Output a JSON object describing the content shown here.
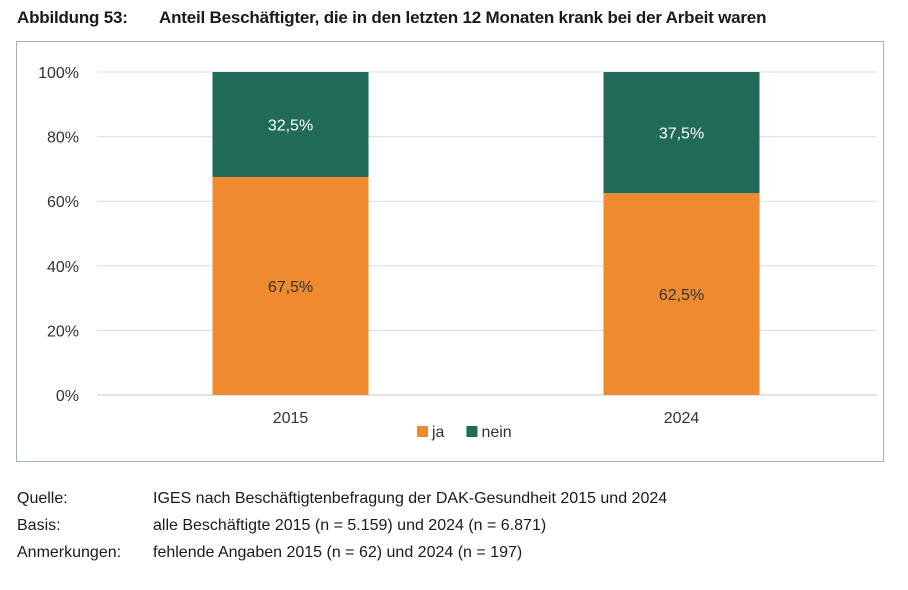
{
  "figure": {
    "label": "Abbildung 53:",
    "title": "Anteil Beschäftigter, die in den letzten 12 Monaten krank bei der Arbeit waren"
  },
  "chart_data": {
    "type": "bar",
    "stacked": true,
    "categories": [
      "2015",
      "2024"
    ],
    "series": [
      {
        "name": "ja",
        "values": [
          67.5,
          62.5
        ],
        "labels": [
          "67,5%",
          "62,5%"
        ],
        "color": "#ef8a2e"
      },
      {
        "name": "nein",
        "values": [
          32.5,
          37.5
        ],
        "labels": [
          "32,5%",
          "37,5%"
        ],
        "color": "#1f6b57"
      }
    ],
    "ylim": [
      0,
      100
    ],
    "yticks": [
      0,
      20,
      40,
      60,
      80,
      100
    ],
    "ytick_labels": [
      "0%",
      "20%",
      "40%",
      "60%",
      "80%",
      "100%"
    ],
    "grid": true,
    "legend_position": "bottom"
  },
  "notes": [
    {
      "key": "Quelle:",
      "value": "IGES nach Beschäftigtenbefragung der DAK-Gesundheit 2015 und 2024"
    },
    {
      "key": "Basis:",
      "value": "alle Beschäftigte 2015 (n = 5.159) und 2024 (n = 6.871)"
    },
    {
      "key": "Anmerkungen:",
      "value": "fehlende Angaben 2015 (n = 62) und 2024 (n = 197)"
    }
  ]
}
